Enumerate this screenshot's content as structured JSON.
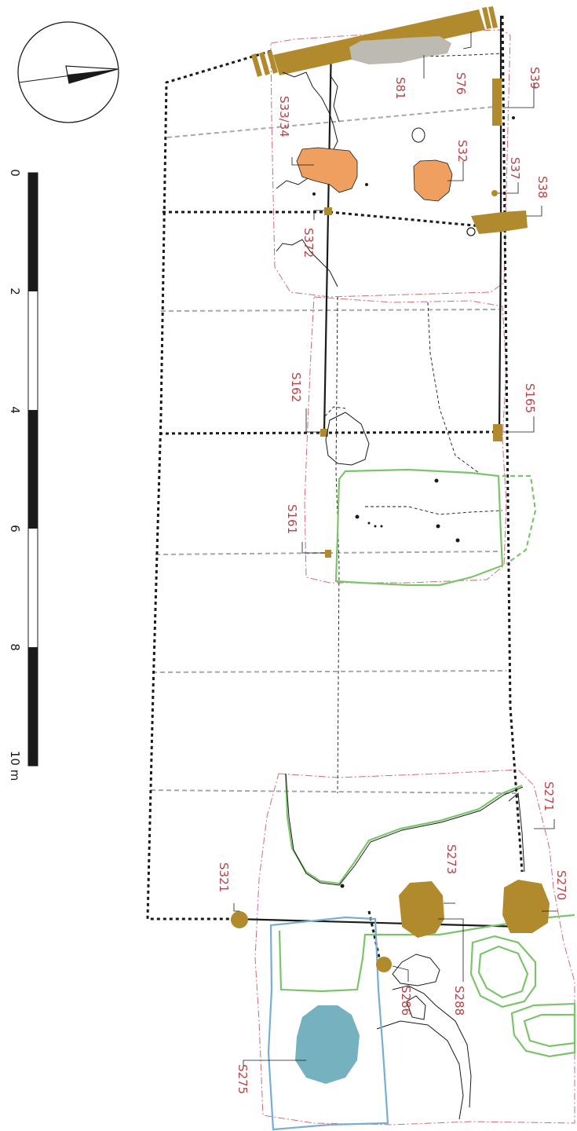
{
  "colors": {
    "label": "#b5434a",
    "post": "#b28a2e",
    "orange_pit": "#ef9f5f",
    "blue_pit": "#76b1bf",
    "grey_pit": "#bdbab2",
    "green_outline": "#7cc46c",
    "blue_outline": "#7aaed0",
    "excavation_edge": "#d46a78",
    "grid": "#a8a8a8"
  },
  "features": {
    "s39": "S39",
    "s76": "S76",
    "s81": "S81",
    "s32": "S32",
    "s33_34": "S33/34",
    "s37": "S37",
    "s38": "S38",
    "s372": "S372",
    "s165": "S165",
    "s162": "S162",
    "s161": "S161",
    "s271": "S271",
    "s270": "S270",
    "s273": "S273",
    "s321": "S321",
    "s288": "S288",
    "s286": "S286",
    "s275": "S275"
  },
  "scale_bar": {
    "ticks": [
      "0",
      "2",
      "4",
      "6",
      "8",
      "10 m"
    ]
  },
  "north_arrow": {
    "icon": "north-arrow-icon"
  }
}
